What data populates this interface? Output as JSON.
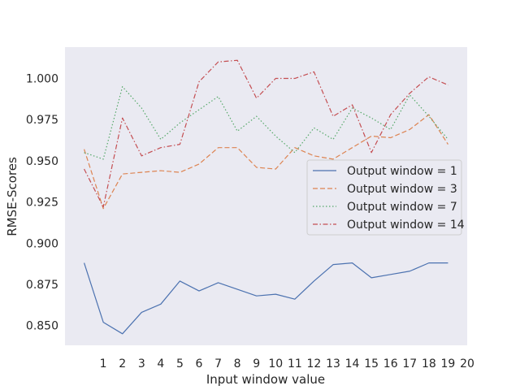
{
  "chart_data": {
    "type": "line",
    "title": "",
    "xlabel": "Input window value",
    "ylabel": "RMSE-Scores",
    "xlim": [
      -1,
      20
    ],
    "ylim": [
      0.838,
      1.019
    ],
    "xticks": [
      1,
      2,
      3,
      4,
      5,
      6,
      7,
      8,
      9,
      10,
      11,
      12,
      13,
      14,
      15,
      16,
      17,
      18,
      19,
      20
    ],
    "yticks": [
      0.85,
      0.875,
      0.9,
      0.925,
      0.95,
      0.975,
      1.0
    ],
    "ytick_labels": [
      "0.850",
      "0.875",
      "0.900",
      "0.925",
      "0.950",
      "0.975",
      "1.000"
    ],
    "grid": false,
    "background": "#eaeaf2",
    "legend_position": "center-right",
    "x": [
      0,
      1,
      2,
      3,
      4,
      5,
      6,
      7,
      8,
      9,
      10,
      11,
      12,
      13,
      14,
      15,
      16,
      17,
      18,
      19
    ],
    "series": [
      {
        "name": "Output window = 1",
        "color": "#4c72b0",
        "dash": "solid",
        "values": [
          0.888,
          0.852,
          0.845,
          0.858,
          0.863,
          0.877,
          0.871,
          0.876,
          0.872,
          0.868,
          0.869,
          0.866,
          0.877,
          0.887,
          0.888,
          0.879,
          0.881,
          0.883,
          0.888,
          0.888
        ]
      },
      {
        "name": "Output window = 3",
        "color": "#dd8452",
        "dash": "dashed",
        "values": [
          0.957,
          0.921,
          0.942,
          0.943,
          0.944,
          0.943,
          0.948,
          0.958,
          0.958,
          0.946,
          0.945,
          0.958,
          0.953,
          0.951,
          0.958,
          0.965,
          0.964,
          0.969,
          0.978,
          0.96
        ]
      },
      {
        "name": "Output window = 7",
        "color": "#55a868",
        "dash": "dotted",
        "values": [
          0.955,
          0.951,
          0.995,
          0.982,
          0.963,
          0.973,
          0.981,
          0.989,
          0.968,
          0.977,
          0.965,
          0.955,
          0.97,
          0.963,
          0.982,
          0.976,
          0.969,
          0.99,
          0.977,
          0.963
        ]
      },
      {
        "name": "Output window = 14",
        "color": "#c44e52",
        "dash": "dashdot",
        "values": [
          0.945,
          0.922,
          0.976,
          0.953,
          0.958,
          0.96,
          0.998,
          1.01,
          1.011,
          0.988,
          1.0,
          1.0,
          1.004,
          0.977,
          0.984,
          0.955,
          0.978,
          0.991,
          1.001,
          0.996
        ]
      }
    ]
  }
}
